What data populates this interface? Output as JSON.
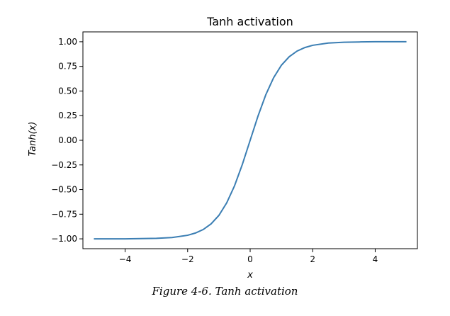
{
  "chart_data": {
    "type": "line",
    "title": "Tanh activation",
    "xlabel": "x",
    "ylabel": "Tanh(x)",
    "xlim": [
      -5.35,
      5.35
    ],
    "ylim": [
      -1.1,
      1.1
    ],
    "xticks": [
      -4,
      -2,
      0,
      2,
      4
    ],
    "xtick_labels": [
      "−4",
      "−2",
      "0",
      "2",
      "4"
    ],
    "yticks": [
      1.0,
      0.75,
      0.5,
      0.25,
      0.0,
      -0.25,
      -0.5,
      -0.75,
      -1.0
    ],
    "ytick_labels": [
      "1.00",
      "0.75",
      "0.50",
      "0.25",
      "0.00",
      "−0.25",
      "−0.50",
      "−0.75",
      "−1.00"
    ],
    "grid": false,
    "line_color": "#3b7eb3",
    "series": [
      {
        "x": [
          -5,
          -4.5,
          -4,
          -3.5,
          -3,
          -2.5,
          -2,
          -1.75,
          -1.5,
          -1.25,
          -1,
          -0.75,
          -0.5,
          -0.25,
          0,
          0.25,
          0.5,
          0.75,
          1,
          1.25,
          1.5,
          1.75,
          2,
          2.5,
          3,
          3.5,
          4,
          4.5,
          5
        ],
        "y": [
          -1.0,
          -1.0,
          -1.0,
          -0.998,
          -0.995,
          -0.987,
          -0.964,
          -0.941,
          -0.905,
          -0.848,
          -0.762,
          -0.635,
          -0.462,
          -0.245,
          0.0,
          0.245,
          0.462,
          0.635,
          0.762,
          0.848,
          0.905,
          0.941,
          0.964,
          0.987,
          0.995,
          0.998,
          1.0,
          1.0,
          1.0
        ]
      }
    ]
  },
  "caption": "Figure 4-6. Tanh activation"
}
